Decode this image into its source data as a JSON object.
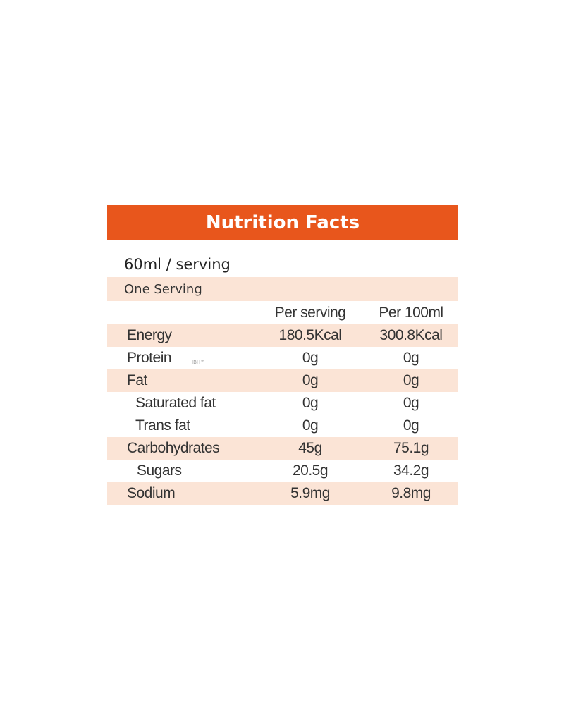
{
  "panel": {
    "title": "Nutrition Facts",
    "serving_size": "60ml / serving",
    "one_serving": "One Serving",
    "columns": {
      "per_serving": "Per serving",
      "per_100ml": "Per 100ml"
    },
    "rows": [
      {
        "label": "Energy",
        "per_serving": "180.5Kcal",
        "per_100ml": "300.8Kcal"
      },
      {
        "label": "Protein",
        "per_serving": "0g",
        "per_100ml": "0g"
      },
      {
        "label": "Fat",
        "per_serving": "0g",
        "per_100ml": "0g"
      },
      {
        "label": "Saturated fat",
        "per_serving": "0g",
        "per_100ml": "0g"
      },
      {
        "label": "Trans fat",
        "per_serving": "0g",
        "per_100ml": "0g"
      },
      {
        "label": "Carbohydrates",
        "per_serving": "45g",
        "per_100ml": "75.1g"
      },
      {
        "label": "Sugars",
        "per_serving": "20.5g",
        "per_100ml": "34.2g"
      },
      {
        "label": "Sodium",
        "per_serving": "5.9mg",
        "per_100ml": "9.8mg"
      }
    ],
    "colors": {
      "header": "#e8561c",
      "shade": "#fbe4d6",
      "header_text": "#ffffff"
    }
  }
}
